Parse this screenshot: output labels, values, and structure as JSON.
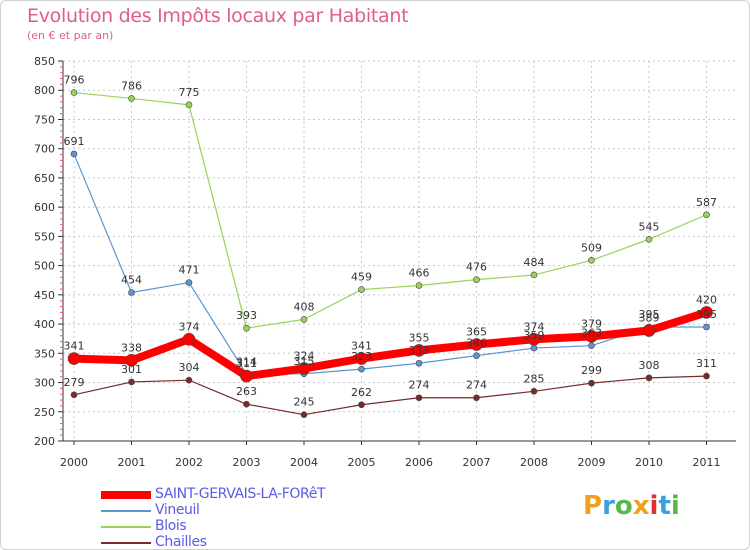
{
  "title": "Evolution des Impôts locaux par Habitant",
  "subtitle": "(en € et par an)",
  "chart_data": {
    "type": "line",
    "title": "Evolution des Impôts locaux par Habitant",
    "subtitle": "(en € et par an)",
    "x": [
      "2000",
      "2001",
      "2002",
      "2003",
      "2004",
      "2005",
      "2006",
      "2007",
      "2008",
      "2009",
      "2010",
      "2011"
    ],
    "ylim": [
      200,
      850
    ],
    "yticks": [
      200,
      250,
      300,
      350,
      400,
      450,
      500,
      550,
      600,
      650,
      700,
      750,
      800,
      850
    ],
    "series": [
      {
        "name": "Blois",
        "color": "#9ad25a",
        "values": [
          796,
          786,
          775,
          393,
          408,
          459,
          466,
          476,
          484,
          509,
          545,
          587
        ]
      },
      {
        "name": "Vineuil",
        "color": "#5a96d2",
        "values": [
          691,
          454,
          471,
          314,
          315,
          323,
          333,
          346,
          359,
          363,
          395,
          395
        ]
      },
      {
        "name": "Chailles",
        "color": "#7a2a2a",
        "values": [
          279,
          301,
          304,
          263,
          245,
          262,
          274,
          274,
          285,
          299,
          308,
          311
        ]
      },
      {
        "name": "SAINT-GERVAIS-LA-FORêT",
        "color": "#ff0000",
        "values": [
          341,
          338,
          374,
          311,
          324,
          341,
          355,
          365,
          374,
          379,
          389,
          420
        ]
      }
    ],
    "labels": {
      "Blois": [
        "796",
        "786",
        "775",
        "393",
        "408",
        "459",
        "466",
        "476",
        "484",
        "509",
        "545",
        "587"
      ],
      "Vineuil": [
        "691",
        "454",
        "471",
        "314",
        "315",
        "323",
        "333",
        "346",
        "359",
        "363",
        "395",
        "395"
      ],
      "Chailles": [
        "279",
        "301",
        "304",
        "263",
        "245",
        "262",
        "274",
        "274",
        "285",
        "299",
        "308",
        "311"
      ],
      "SAINT-GERVAIS-LA-FORêT": [
        "341",
        "338",
        "374",
        "311",
        "324",
        "341",
        "355",
        "365",
        "374",
        "379",
        "389",
        "420"
      ]
    }
  },
  "legend": [
    {
      "label": "SAINT-GERVAIS-LA-FORêT",
      "color": "#ff0000"
    },
    {
      "label": "Vineuil",
      "color": "#5a96d2"
    },
    {
      "label": "Blois",
      "color": "#9ad25a"
    },
    {
      "label": "Chailles",
      "color": "#7a2a2a"
    }
  ],
  "logo": {
    "letters": [
      "P",
      "r",
      "o",
      "x",
      "i",
      "t",
      "i"
    ],
    "colors": [
      "#f0a020",
      "#3aa0e0",
      "#58b848",
      "#f0a020",
      "#e03030",
      "#3aa0e0",
      "#58b848"
    ]
  }
}
